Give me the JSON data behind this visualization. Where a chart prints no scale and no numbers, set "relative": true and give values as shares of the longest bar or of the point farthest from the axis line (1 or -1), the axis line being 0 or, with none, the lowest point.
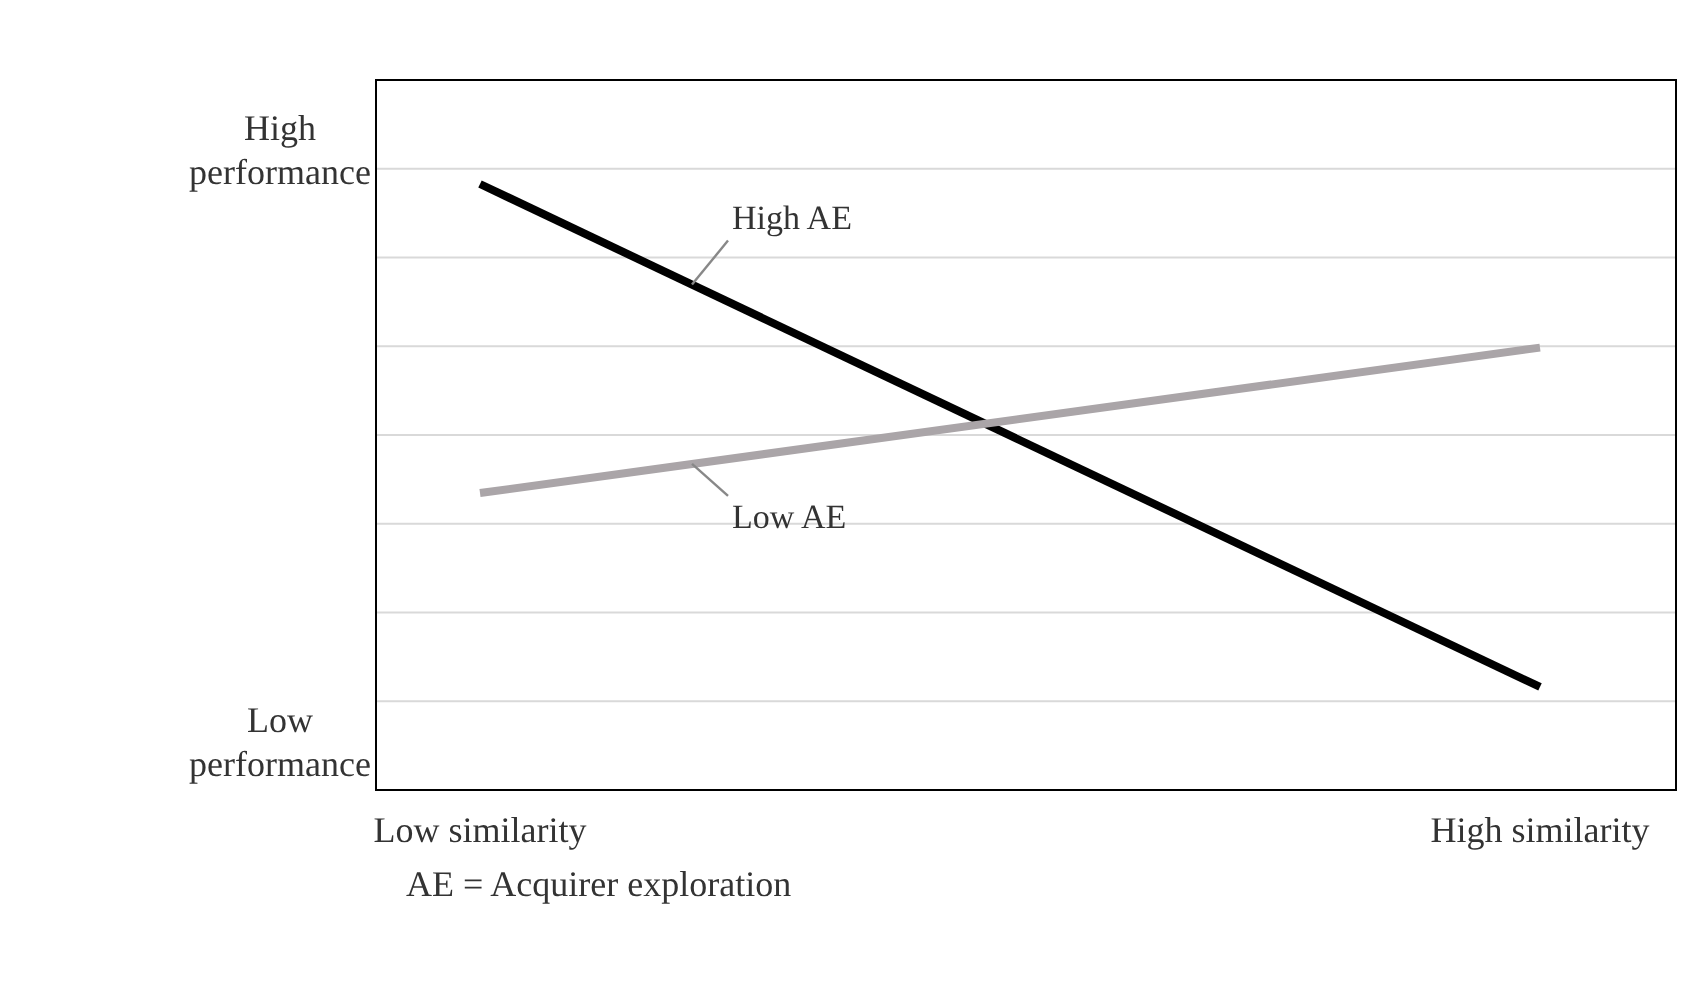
{
  "chart_data": {
    "type": "line",
    "relative": true,
    "categories": [
      "Low similarity",
      "High similarity"
    ],
    "series": [
      {
        "name": "High AE",
        "color": "#000000",
        "values": [
          1,
          0.17
        ]
      },
      {
        "name": "Low AE",
        "color": "#aaa5a8",
        "values": [
          0.49,
          0.73
        ]
      }
    ],
    "annotations": [
      "High performance",
      "Low performance",
      "AE = Acquirer exploration"
    ],
    "grid": true,
    "marker": "none",
    "line_style": "solid"
  }
}
